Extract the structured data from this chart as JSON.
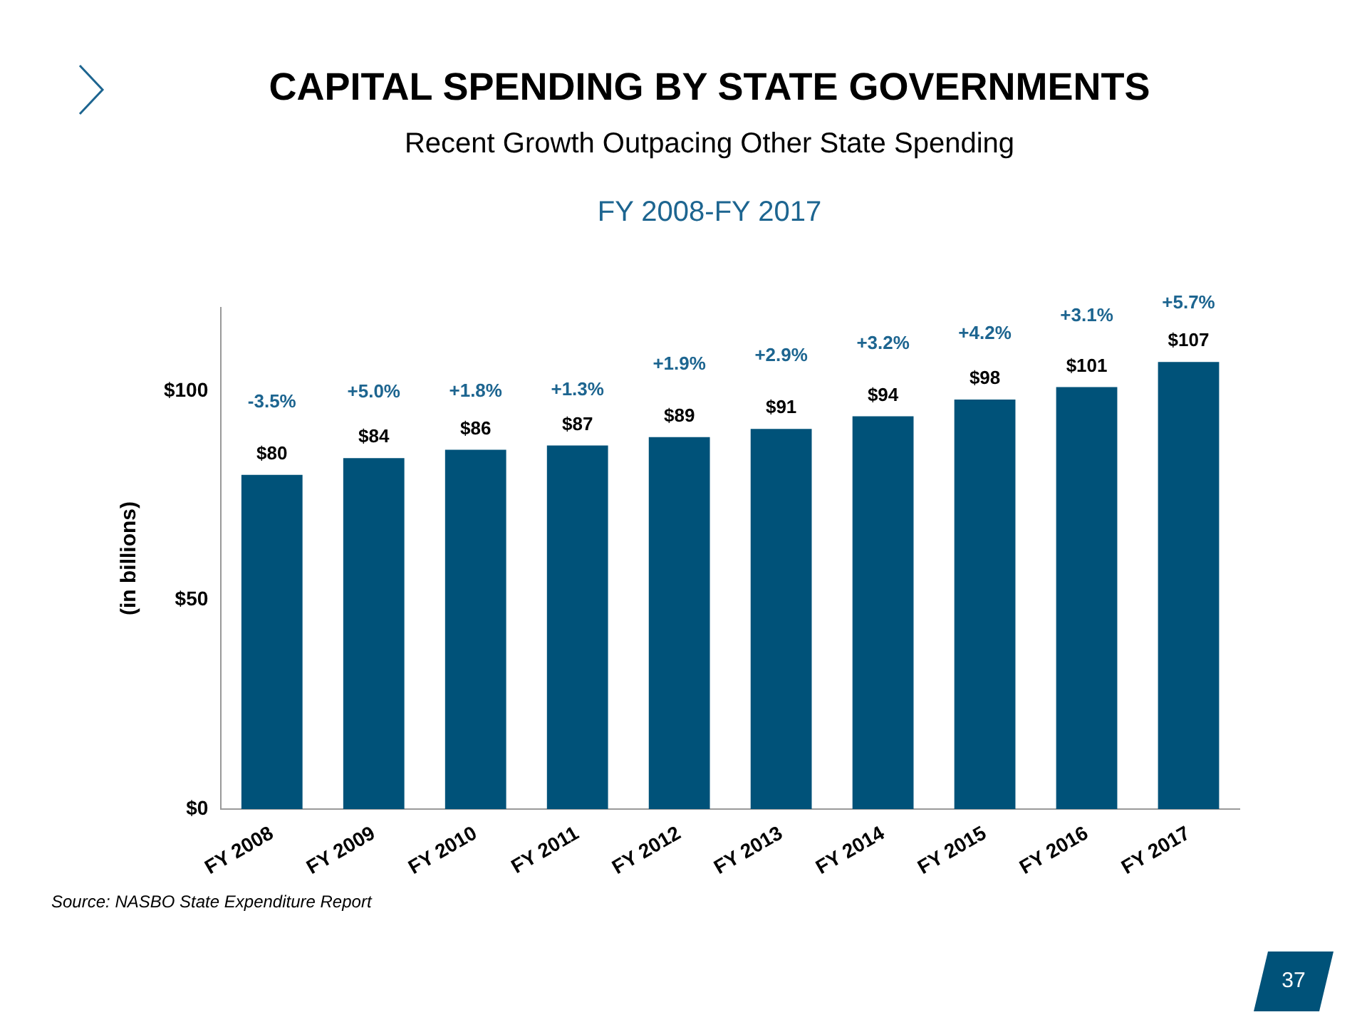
{
  "chart_data": {
    "type": "bar",
    "title": "CAPITAL SPENDING BY STATE GOVERNMENTS",
    "subtitle": "Recent Growth Outpacing Other State Spending",
    "ylabel": "(in billions)",
    "categories": [
      "FY 2008",
      "FY 2009",
      "FY 2010",
      "FY 2011",
      "FY 2012",
      "FY 2013",
      "FY 2014",
      "FY 2015",
      "FY 2016",
      "FY 2017"
    ],
    "values": [
      80,
      84,
      86,
      87,
      89,
      91,
      94,
      98,
      101,
      107
    ],
    "value_labels": [
      "$80",
      "$84",
      "$86",
      "$87",
      "$89",
      "$91",
      "$94",
      "$98",
      "$101",
      "$107"
    ],
    "color": "#005279",
    "ylim": [
      0,
      120
    ],
    "yticks": [
      {
        "value": 0,
        "label": "$0"
      },
      {
        "value": 50,
        "label": "$50"
      },
      {
        "value": 100,
        "label": "$100"
      }
    ],
    "grid": false,
    "legend": false,
    "annotations": [
      "FY 2008-FY 2017",
      "-3.5%",
      "+5.0%",
      "+1.8%",
      "+1.3%",
      "+1.9%",
      "+2.9%",
      "+3.2%",
      "+4.2%",
      "+3.1%",
      "+5.7%",
      "Source: NASBO State Expenditure Report",
      "37"
    ]
  }
}
